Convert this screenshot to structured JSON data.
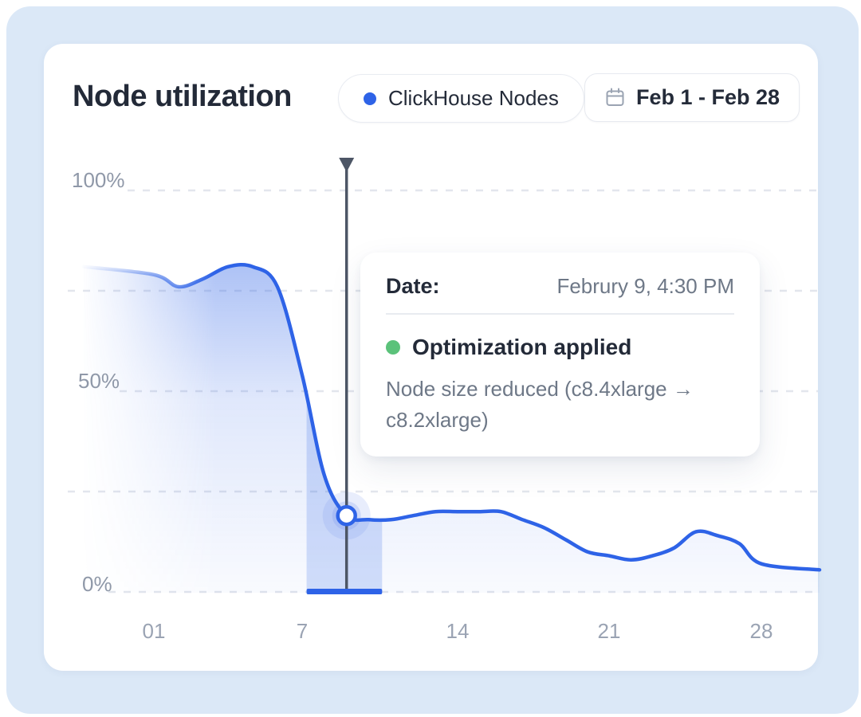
{
  "header": {
    "title": "Node utilization",
    "legend": {
      "label": "ClickHouse Nodes",
      "dot_color": "#2e63e7"
    },
    "date_range": {
      "label": "Feb 1 - Feb 28"
    }
  },
  "tooltip": {
    "date_label": "Date:",
    "date_value": "Februry 9, 4:30 PM",
    "event_label": "Optimization applied",
    "event_dot_color": "#5bc27a",
    "description": "Node size reduced (c8.4xlarge → c8.2xlarge)"
  },
  "chart_data": {
    "type": "area",
    "title": "Node utilization",
    "unit": "%",
    "line_color": "#2e63e7",
    "grid": "dashed-horizontal",
    "legend_position": "top",
    "ylim": [
      0,
      100
    ],
    "y_tick_labels": [
      "100%",
      "50%",
      "0%"
    ],
    "y_gridlines_pct": [
      100,
      75,
      50,
      25,
      0
    ],
    "x_tick_labels": [
      "01",
      "7",
      "14",
      "21",
      "28"
    ],
    "x_tick_days": [
      1,
      7,
      14,
      21,
      28
    ],
    "series": [
      {
        "name": "ClickHouse Nodes",
        "color": "#2e63e7",
        "x_days": [
          1,
          2,
          3,
          4,
          5,
          6,
          7,
          8,
          9,
          10,
          11,
          12,
          13,
          14,
          15,
          16,
          17,
          18,
          19,
          20,
          21,
          22,
          23,
          24,
          25,
          26,
          27,
          28
        ],
        "values_pct": [
          79,
          76,
          78,
          81,
          81,
          76,
          54,
          29,
          19,
          18,
          18,
          19,
          20,
          20,
          20,
          20,
          18,
          16,
          13,
          10,
          9,
          8,
          9,
          11,
          15,
          14,
          12,
          7
        ]
      }
    ],
    "annotation": {
      "day": 9,
      "value_pct": 19,
      "label": "Optimization applied",
      "detail": "Node size reduced (c8.4xlarge → c8.2xlarge)",
      "highlight_band_days": [
        7.2,
        10.6
      ]
    }
  }
}
